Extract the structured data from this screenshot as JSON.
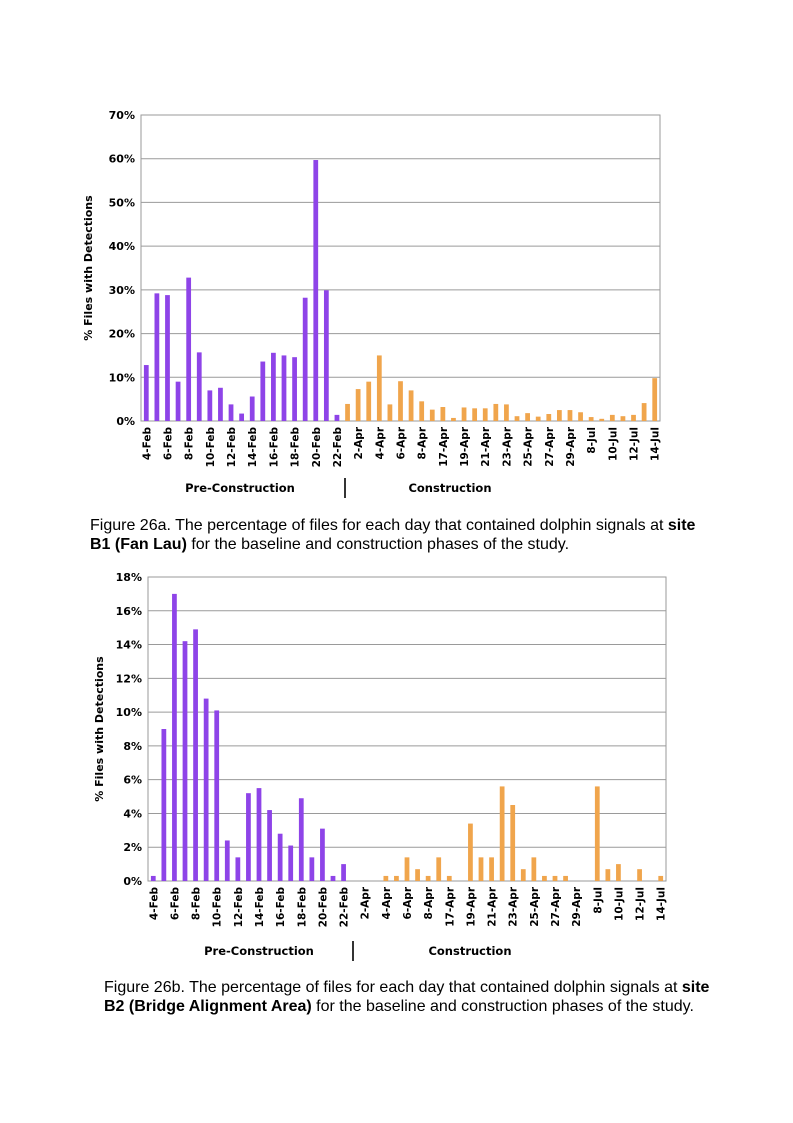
{
  "chart_data": [
    {
      "type": "bar",
      "ylabel": "% Files with Detections",
      "ylim": [
        0,
        70
      ],
      "ytick_step": 10,
      "ytick_suffix": "%",
      "grid": true,
      "x_tick_labels": [
        "4-Feb",
        "6-Feb",
        "8-Feb",
        "10-Feb",
        "12-Feb",
        "14-Feb",
        "16-Feb",
        "18-Feb",
        "20-Feb",
        "22-Feb",
        "2-Apr",
        "4-Apr",
        "6-Apr",
        "8-Apr",
        "17-Apr",
        "19-Apr",
        "21-Apr",
        "23-Apr",
        "25-Apr",
        "27-Apr",
        "29-Apr",
        "8-Jul",
        "10-Jul",
        "12-Jul",
        "14-Jul"
      ],
      "phases": [
        {
          "name": "Pre-Construction",
          "color": "#8e44e8",
          "values": [
            12.8,
            29.2,
            28.8,
            9.0,
            32.8,
            15.7,
            7.0,
            7.6,
            3.8,
            1.7,
            5.6,
            13.6,
            15.6,
            15.0,
            14.6,
            28.2,
            59.7,
            29.9,
            1.4
          ]
        },
        {
          "name": "Construction",
          "color": "#f0a54c",
          "values": [
            3.9,
            7.3,
            9.0,
            15.0,
            3.8,
            9.1,
            7.0,
            4.5,
            2.6,
            3.2,
            0.7,
            3.1,
            2.9,
            2.9,
            3.9,
            3.8,
            1.1,
            1.8,
            1.0,
            1.6,
            2.5,
            2.5,
            2.0,
            0.9,
            0.5,
            1.4,
            1.1,
            1.4,
            4.1,
            9.8
          ]
        }
      ],
      "caption": {
        "text": "Figure 26a. The percentage of files for each day that contained dolphin signals at ",
        "bold": "site B1 (Fan Lau)",
        "rest": " for the baseline and construction phases of the study."
      }
    },
    {
      "type": "bar",
      "ylabel": "% Files with Detections",
      "ylim": [
        0,
        18
      ],
      "ytick_step": 2,
      "ytick_suffix": "%",
      "grid": true,
      "x_tick_labels": [
        "4-Feb",
        "6-Feb",
        "8-Feb",
        "10-Feb",
        "12-Feb",
        "14-Feb",
        "16-Feb",
        "18-Feb",
        "20-Feb",
        "22-Feb",
        "2-Apr",
        "4-Apr",
        "6-Apr",
        "8-Apr",
        "17-Apr",
        "19-Apr",
        "21-Apr",
        "23-Apr",
        "25-Apr",
        "27-Apr",
        "29-Apr",
        "8-Jul",
        "10-Jul",
        "12-Jul",
        "14-Jul"
      ],
      "phases": [
        {
          "name": "Pre-Construction",
          "color": "#8e44e8",
          "values": [
            0.3,
            9.0,
            17.0,
            14.2,
            14.9,
            10.8,
            10.1,
            2.4,
            1.4,
            5.2,
            5.5,
            4.2,
            2.8,
            2.1,
            4.9,
            1.4,
            3.1,
            0.3,
            1.0
          ]
        },
        {
          "name": "Construction",
          "color": "#f0a54c",
          "values": [
            0,
            0,
            0,
            0.3,
            0.3,
            1.4,
            0.7,
            0.3,
            1.4,
            0.3,
            0,
            3.4,
            1.4,
            1.4,
            5.6,
            4.5,
            0.7,
            1.4,
            0.3,
            0.3,
            0.3,
            0,
            0,
            5.6,
            0.7,
            1.0,
            0,
            0.7,
            0,
            0.3
          ]
        }
      ],
      "caption": {
        "text": "Figure 26b. The percentage of files for each day that contained dolphin signals at ",
        "bold": "site B2 (Bridge Alignment Area)",
        "rest": " for the baseline and construction phases of the study."
      }
    }
  ]
}
